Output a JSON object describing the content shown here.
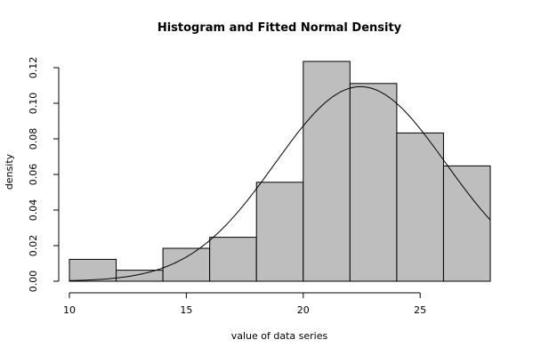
{
  "chart_data": {
    "type": "bar",
    "title": "Histogram and Fitted Normal Density",
    "xlabel": "value of data series",
    "ylabel": "density",
    "xlim": [
      10,
      28
    ],
    "ylim": [
      0,
      0.124
    ],
    "x_ticks": [
      10,
      15,
      20,
      25
    ],
    "y_ticks": [
      0.0,
      0.02,
      0.04,
      0.06,
      0.08,
      0.1,
      0.12
    ],
    "x_tick_labels": [
      "10",
      "15",
      "20",
      "25"
    ],
    "y_tick_labels": [
      "0.00",
      "0.02",
      "0.04",
      "0.06",
      "0.08",
      "0.10",
      "0.12"
    ],
    "bins": [
      {
        "from": 10,
        "to": 12,
        "density": 0.0123
      },
      {
        "from": 12,
        "to": 14,
        "density": 0.0062
      },
      {
        "from": 14,
        "to": 16,
        "density": 0.0185
      },
      {
        "from": 16,
        "to": 18,
        "density": 0.0247
      },
      {
        "from": 18,
        "to": 20,
        "density": 0.0556
      },
      {
        "from": 20,
        "to": 22,
        "density": 0.1235
      },
      {
        "from": 22,
        "to": 24,
        "density": 0.1111
      },
      {
        "from": 24,
        "to": 26,
        "density": 0.0833
      },
      {
        "from": 26,
        "to": 28,
        "density": 0.0648
      }
    ],
    "fitted_normal": {
      "mean": 22.45,
      "sd": 3.65
    },
    "grid": false
  }
}
